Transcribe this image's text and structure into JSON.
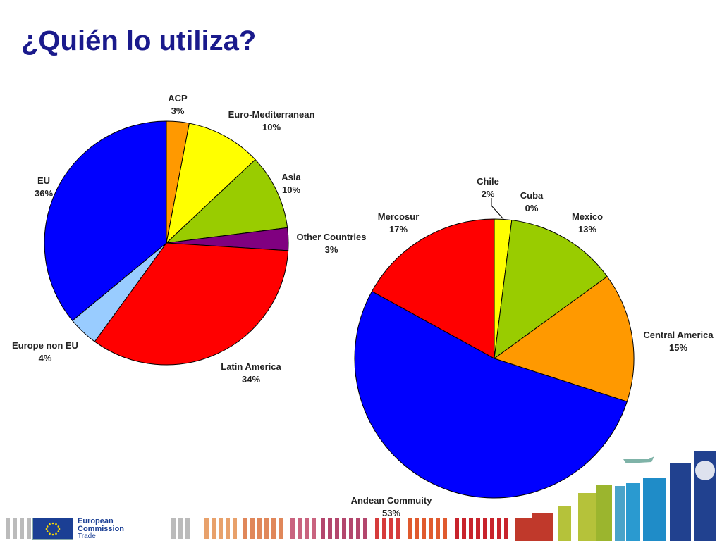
{
  "slide": {
    "title": "¿Quién lo utiliza?"
  },
  "footer": {
    "org_line1": "European Commission",
    "org_line2": "Trade"
  },
  "chart_data": [
    {
      "type": "pie",
      "start": "12 o'clock",
      "direction": "clockwise",
      "slices": [
        {
          "label": "ACP",
          "value": 3,
          "value_label": "3%",
          "color": "#ff9900"
        },
        {
          "label": "Euro-Mediterranean",
          "value": 10,
          "value_label": "10%",
          "color": "#ffff00"
        },
        {
          "label": "Asia",
          "value": 10,
          "value_label": "10%",
          "color": "#99cc00"
        },
        {
          "label": "Other Countries",
          "value": 3,
          "value_label": "3%",
          "color": "#800080"
        },
        {
          "label": "Latin America",
          "value": 34,
          "value_label": "34%",
          "color": "#ff0000"
        },
        {
          "label": "Europe non EU",
          "value": 4,
          "value_label": "4%",
          "color": "#99ccff"
        },
        {
          "label": "EU",
          "value": 36,
          "value_label": "36%",
          "color": "#0000ff"
        }
      ]
    },
    {
      "type": "pie",
      "start": "12 o'clock",
      "direction": "clockwise",
      "slices": [
        {
          "label": "Chile",
          "value": 2,
          "value_label": "2%",
          "color": "#ffff00"
        },
        {
          "label": "Cuba",
          "value": 0,
          "value_label": "0%",
          "color": "#000000"
        },
        {
          "label": "Mexico",
          "value": 13,
          "value_label": "13%",
          "color": "#99cc00"
        },
        {
          "label": "Central America",
          "value": 15,
          "value_label": "15%",
          "color": "#ff9900"
        },
        {
          "label": "Andean Commuity",
          "value": 53,
          "value_label": "53%",
          "color": "#0000ff"
        },
        {
          "label": "Mercosur",
          "value": 17,
          "value_label": "17%",
          "color": "#ff0000"
        }
      ]
    }
  ]
}
